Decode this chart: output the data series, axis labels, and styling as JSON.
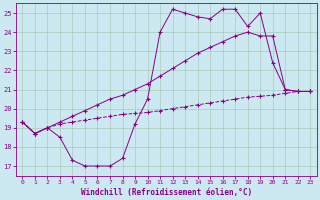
{
  "xlabel": "Windchill (Refroidissement éolien,°C)",
  "bg_color": "#cce8f0",
  "grid_color": "#aaccbb",
  "line_color": "#880088",
  "xlim": [
    -0.5,
    23.5
  ],
  "ylim": [
    16.5,
    25.5
  ],
  "xticks": [
    0,
    1,
    2,
    3,
    4,
    5,
    6,
    7,
    8,
    9,
    10,
    11,
    12,
    13,
    14,
    15,
    16,
    17,
    18,
    19,
    20,
    21,
    22,
    23
  ],
  "yticks": [
    17,
    18,
    19,
    20,
    21,
    22,
    23,
    24,
    25
  ],
  "line1_x": [
    0,
    1,
    2,
    3,
    4,
    5,
    6,
    7,
    8,
    9,
    10,
    11,
    12,
    13,
    14,
    15,
    16,
    17,
    18,
    19,
    20,
    21,
    22,
    23
  ],
  "line1_y": [
    19.3,
    18.7,
    19.0,
    18.5,
    17.3,
    17.0,
    17.0,
    17.0,
    17.4,
    19.2,
    20.5,
    24.0,
    25.2,
    25.0,
    24.8,
    24.7,
    25.2,
    25.2,
    24.3,
    25.0,
    22.4,
    21.0,
    20.9,
    20.9
  ],
  "line2_x": [
    0,
    1,
    2,
    3,
    4,
    5,
    6,
    7,
    8,
    9,
    10,
    11,
    12,
    13,
    14,
    15,
    16,
    17,
    18,
    19,
    20,
    21,
    22,
    23
  ],
  "line2_y": [
    19.3,
    18.7,
    19.0,
    19.3,
    19.6,
    19.9,
    20.2,
    20.5,
    20.7,
    21.0,
    21.3,
    21.7,
    22.1,
    22.5,
    22.9,
    23.2,
    23.5,
    23.8,
    24.0,
    23.8,
    23.8,
    21.0,
    20.9,
    20.9
  ],
  "line3_x": [
    0,
    1,
    2,
    3,
    4,
    5,
    6,
    7,
    8,
    9,
    10,
    11,
    12,
    13,
    14,
    15,
    16,
    17,
    18,
    19,
    20,
    21,
    22,
    23
  ],
  "line3_y": [
    19.3,
    18.7,
    19.0,
    19.2,
    19.3,
    19.4,
    19.5,
    19.6,
    19.7,
    19.75,
    19.8,
    19.9,
    20.0,
    20.1,
    20.2,
    20.3,
    20.4,
    20.5,
    20.6,
    20.65,
    20.7,
    20.8,
    20.9,
    20.9
  ]
}
